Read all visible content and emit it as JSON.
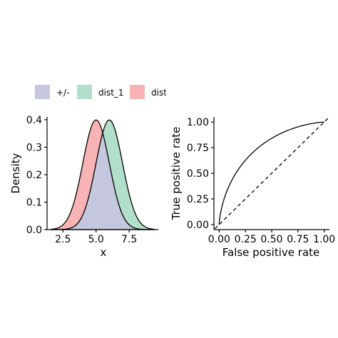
{
  "chart_data": [
    {
      "type": "area",
      "xlabel": "x",
      "ylabel": "Density",
      "xlim": [
        1.3,
        9.7
      ],
      "ylim": [
        0,
        0.41
      ],
      "x_ticks": [
        2.5,
        5.0,
        7.5
      ],
      "x_tick_labels": [
        "2.5",
        "5.0",
        "7.5"
      ],
      "y_ticks": [
        0.0,
        0.1,
        0.2,
        0.3,
        0.4
      ],
      "y_tick_labels": [
        "0.0",
        "0.1",
        "0.2",
        "0.3",
        "0.4"
      ],
      "grid": false,
      "legend_position": "top",
      "x_range": [
        1.6,
        9.4
      ],
      "series": [
        {
          "name": "dist_1",
          "mean": 6.0,
          "sd": 1.0,
          "color": "#b2dfc9"
        },
        {
          "name": "dist",
          "mean": 5.0,
          "sd": 1.0,
          "color": "#f8b4b4"
        },
        {
          "name": "+/-",
          "color": "#c5c7de"
        }
      ],
      "legend": [
        {
          "label": "+/-",
          "color": "#c5c7de"
        },
        {
          "label": "dist_1",
          "color": "#b2dfc9"
        },
        {
          "label": "dist",
          "color": "#f8b4b4"
        }
      ]
    },
    {
      "type": "line",
      "xlabel": "False positive rate",
      "ylabel": "True positive rate",
      "xlim": [
        -0.05,
        1.05
      ],
      "ylim": [
        -0.05,
        1.05
      ],
      "x_ticks": [
        0.0,
        0.25,
        0.5,
        0.75,
        1.0
      ],
      "x_tick_labels": [
        "0.00",
        "0.25",
        "0.50",
        "0.75",
        "1.00"
      ],
      "y_ticks": [
        0.0,
        0.25,
        0.5,
        0.75,
        1.0
      ],
      "y_tick_labels": [
        "0.00",
        "0.25",
        "0.50",
        "0.75",
        "1.00"
      ],
      "grid": false,
      "series": [
        {
          "type": "roc",
          "mean_shift": 1.0,
          "line_style": "solid"
        },
        {
          "type": "diagonal",
          "x": [
            0,
            1
          ],
          "y": [
            0,
            1
          ],
          "line_style": "dashed"
        }
      ]
    }
  ]
}
